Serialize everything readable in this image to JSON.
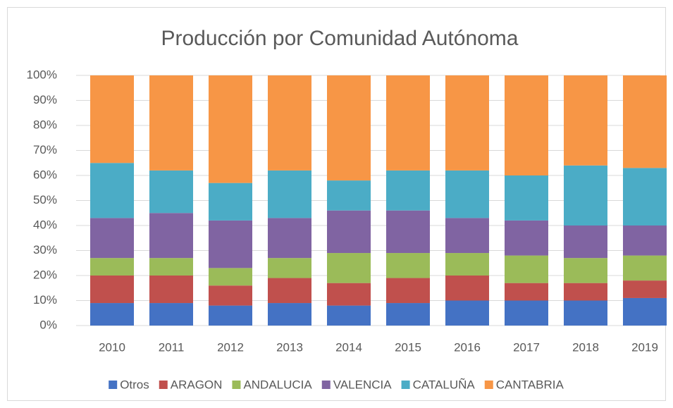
{
  "chart_data": {
    "type": "stacked_bar",
    "title": "Producción por Comunidad Autónoma",
    "categories": [
      "2010",
      "2011",
      "2012",
      "2013",
      "2014",
      "2015",
      "2016",
      "2017",
      "2018",
      "2019"
    ],
    "series": [
      {
        "name": "Otros",
        "color": "#4472c4",
        "values": [
          9,
          9,
          8,
          9,
          8,
          9,
          10,
          10,
          10,
          11
        ]
      },
      {
        "name": "ARAGON",
        "color": "#c0504d",
        "values": [
          11,
          11,
          8,
          10,
          9,
          10,
          10,
          7,
          7,
          7
        ]
      },
      {
        "name": "ANDALUCIA",
        "color": "#9bbb59",
        "values": [
          7,
          7,
          7,
          8,
          12,
          10,
          9,
          11,
          10,
          10
        ]
      },
      {
        "name": "VALENCIA",
        "color": "#8064a2",
        "values": [
          16,
          18,
          19,
          16,
          17,
          17,
          14,
          14,
          13,
          12
        ]
      },
      {
        "name": "CATALUÑA",
        "color": "#4bacc6",
        "values": [
          22,
          17,
          15,
          19,
          12,
          16,
          19,
          18,
          24,
          23
        ]
      },
      {
        "name": "CANTABRIA",
        "color": "#f79646",
        "values": [
          35,
          38,
          43,
          38,
          42,
          38,
          38,
          40,
          36,
          37
        ]
      }
    ],
    "ylim": [
      0,
      100
    ],
    "yticks": [
      {
        "value": 0,
        "label": "0%"
      },
      {
        "value": 10,
        "label": "10%"
      },
      {
        "value": 20,
        "label": "20%"
      },
      {
        "value": 30,
        "label": "30%"
      },
      {
        "value": 40,
        "label": "40%"
      },
      {
        "value": 50,
        "label": "50%"
      },
      {
        "value": 60,
        "label": "60%"
      },
      {
        "value": 70,
        "label": "70%"
      },
      {
        "value": 80,
        "label": "80%"
      },
      {
        "value": 90,
        "label": "90%"
      },
      {
        "value": 100,
        "label": "100%"
      }
    ],
    "grid": true,
    "legend": "bottom"
  }
}
